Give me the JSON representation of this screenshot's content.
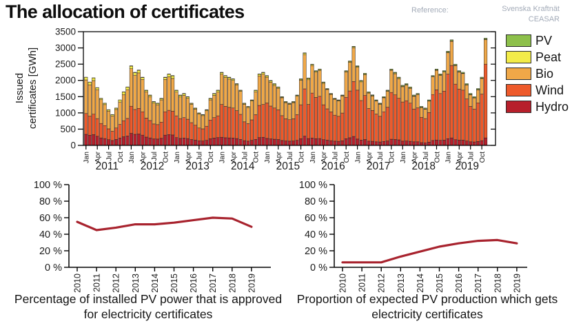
{
  "header": {
    "title": "The allocation of certificates",
    "reference_label": "Reference:",
    "reference_source_1": "Svenska Kraftnät",
    "reference_source_2": "CEASAR"
  },
  "legend": {
    "items": [
      {
        "label": "PV",
        "color": "#8dc04b"
      },
      {
        "label": "Peat",
        "color": "#f3ec49"
      },
      {
        "label": "Bio",
        "color": "#f0a848"
      },
      {
        "label": "Wind",
        "color": "#ee5a2b"
      },
      {
        "label": "Hydro",
        "color": "#b71f2b"
      }
    ]
  },
  "chart_data": [
    {
      "id": "issued-certificates",
      "type": "bar",
      "stacked": true,
      "ylabel": "Issued certificates [GWh]",
      "ylabel_lines": [
        "Issued",
        "certificates [GWh]"
      ],
      "ylim": [
        0,
        3500
      ],
      "ytick_step": 500,
      "years": [
        2011,
        2012,
        2013,
        2014,
        2015,
        2016,
        2017,
        2018,
        2019
      ],
      "months_start": "2011-01",
      "months_end": "2019-11",
      "month_tick_labels": [
        "Jan",
        "Apr",
        "Jul",
        "Oct"
      ],
      "legend_position": "right",
      "grid": false,
      "series": [
        {
          "name": "Hydro",
          "color": "#b71f2b",
          "values": [
            340,
            310,
            330,
            280,
            230,
            210,
            175,
            150,
            185,
            225,
            265,
            290,
            370,
            340,
            350,
            315,
            255,
            230,
            200,
            195,
            220,
            315,
            330,
            320,
            240,
            215,
            225,
            210,
            180,
            160,
            140,
            135,
            155,
            205,
            225,
            240,
            250,
            235,
            230,
            225,
            210,
            185,
            145,
            130,
            155,
            185,
            240,
            250,
            215,
            200,
            190,
            180,
            150,
            135,
            130,
            135,
            155,
            205,
            285,
            210,
            225,
            205,
            210,
            175,
            160,
            145,
            130,
            125,
            140,
            205,
            235,
            275,
            195,
            160,
            180,
            130,
            125,
            110,
            105,
            120,
            135,
            190,
            180,
            170,
            130,
            135,
            125,
            110,
            110,
            85,
            80,
            100,
            150,
            165,
            155,
            160,
            205,
            230,
            175,
            160,
            160,
            135,
            110,
            105,
            120,
            145,
            230
          ]
        },
        {
          "name": "Wind",
          "color": "#ee5a2b",
          "values": [
            640,
            590,
            630,
            545,
            445,
            400,
            335,
            285,
            350,
            420,
            495,
            540,
            835,
            765,
            790,
            720,
            585,
            535,
            460,
            445,
            495,
            720,
            750,
            730,
            670,
            610,
            630,
            595,
            520,
            460,
            395,
            375,
            435,
            575,
            630,
            670,
            1010,
            965,
            940,
            925,
            860,
            770,
            580,
            540,
            630,
            760,
            990,
            1010,
            1090,
            1010,
            960,
            915,
            765,
            685,
            660,
            685,
            790,
            1045,
            1455,
            1050,
            1385,
            1270,
            1300,
            1075,
            965,
            885,
            800,
            770,
            855,
            1275,
            1440,
            1690,
            1505,
            1220,
            1355,
            1005,
            950,
            855,
            790,
            915,
            1040,
            1440,
            1375,
            1280,
            1205,
            1240,
            1175,
            1010,
            1045,
            780,
            745,
            910,
            1415,
            1545,
            1440,
            1510,
            1990,
            2230,
            1710,
            1575,
            1540,
            1295,
            1090,
            1015,
            1190,
            1435,
            2270
          ]
        },
        {
          "name": "Bio",
          "color": "#f0a848",
          "values": [
            1035,
            965,
            1035,
            890,
            730,
            645,
            545,
            470,
            570,
            690,
            805,
            885,
            1155,
            1055,
            1090,
            995,
            810,
            735,
            640,
            610,
            685,
            995,
            1030,
            1010,
            730,
            665,
            685,
            645,
            565,
            495,
            430,
            405,
            475,
            620,
            685,
            730,
            930,
            890,
            870,
            850,
            795,
            710,
            540,
            495,
            580,
            705,
            910,
            930,
            790,
            735,
            695,
            660,
            550,
            495,
            475,
            495,
            570,
            755,
            1055,
            760,
            845,
            780,
            795,
            660,
            595,
            540,
            490,
            475,
            525,
            780,
            880,
            1040,
            705,
            575,
            640,
            475,
            445,
            400,
            370,
            430,
            490,
            680,
            650,
            605,
            470,
            480,
            455,
            390,
            410,
            300,
            290,
            355,
            550,
            600,
            560,
            585,
            660,
            745,
            570,
            525,
            510,
            430,
            360,
            340,
            400,
            480,
            755
          ]
        },
        {
          "name": "Peat",
          "color": "#f3ec49",
          "values": [
            80,
            80,
            80,
            60,
            40,
            40,
            40,
            40,
            40,
            60,
            80,
            80,
            80,
            80,
            80,
            60,
            40,
            40,
            40,
            40,
            40,
            60,
            80,
            80,
            50,
            50,
            50,
            40,
            25,
            25,
            25,
            25,
            25,
            40,
            50,
            50,
            50,
            50,
            50,
            40,
            25,
            25,
            25,
            25,
            25,
            40,
            50,
            50,
            40,
            40,
            40,
            30,
            20,
            20,
            20,
            20,
            20,
            30,
            40,
            40,
            30,
            30,
            30,
            25,
            15,
            15,
            15,
            15,
            15,
            25,
            30,
            30,
            25,
            25,
            25,
            20,
            15,
            15,
            15,
            15,
            15,
            20,
            25,
            25,
            20,
            20,
            20,
            15,
            10,
            10,
            10,
            10,
            10,
            15,
            20,
            20,
            15,
            15,
            15,
            10,
            10,
            10,
            10,
            10,
            10,
            10,
            15
          ]
        },
        {
          "name": "PV",
          "color": "#8dc04b",
          "values": [
            5,
            5,
            5,
            5,
            5,
            5,
            5,
            5,
            5,
            5,
            5,
            5,
            10,
            10,
            10,
            10,
            10,
            10,
            10,
            10,
            10,
            10,
            10,
            10,
            10,
            10,
            10,
            10,
            10,
            10,
            10,
            10,
            10,
            10,
            10,
            10,
            10,
            10,
            10,
            10,
            10,
            10,
            10,
            10,
            10,
            10,
            10,
            10,
            15,
            15,
            15,
            15,
            15,
            15,
            15,
            15,
            15,
            15,
            15,
            15,
            15,
            15,
            15,
            15,
            15,
            15,
            15,
            15,
            15,
            15,
            15,
            15,
            20,
            20,
            20,
            20,
            20,
            20,
            20,
            20,
            20,
            20,
            20,
            20,
            25,
            25,
            25,
            25,
            25,
            25,
            25,
            25,
            25,
            25,
            25,
            25,
            30,
            30,
            30,
            30,
            30,
            30,
            30,
            30,
            30,
            30,
            30
          ]
        }
      ]
    },
    {
      "id": "pv-power-approved-share",
      "type": "line",
      "x": [
        2010,
        2011,
        2012,
        2013,
        2014,
        2015,
        2016,
        2017,
        2018,
        2019
      ],
      "values": [
        55,
        45,
        48,
        52,
        52,
        54,
        57,
        60,
        59,
        49
      ],
      "ylim": [
        0,
        100
      ],
      "ytick_step": 20,
      "ytick_suffix": " %",
      "line_color": "#a8232e",
      "grid": false,
      "caption": "Percentage of installed PV power that is approved for electricity certificates"
    },
    {
      "id": "pv-production-certified-share",
      "type": "line",
      "x": [
        2010,
        2011,
        2012,
        2013,
        2014,
        2015,
        2016,
        2017,
        2018,
        2019
      ],
      "values": [
        6,
        6,
        6,
        13,
        19,
        25,
        29,
        32,
        33,
        29
      ],
      "ylim": [
        0,
        100
      ],
      "ytick_step": 20,
      "ytick_suffix": " %",
      "line_color": "#a8232e",
      "grid": false,
      "caption": "Proportion of expected PV production which gets electricity certificates"
    }
  ]
}
